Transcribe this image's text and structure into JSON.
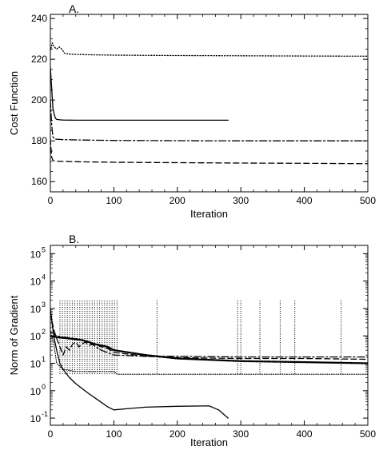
{
  "chart_data": [
    {
      "type": "line",
      "title": "A.",
      "xlabel": "Iteration",
      "ylabel": "Cost Function",
      "xlim": [
        0,
        500
      ],
      "ylim": [
        155,
        242
      ],
      "xticks": [
        0,
        100,
        200,
        300,
        400,
        500
      ],
      "yticks": [
        160,
        180,
        200,
        220,
        240
      ],
      "grid": false,
      "series": [
        {
          "style": "dotted",
          "x": [
            0,
            3,
            6,
            10,
            14,
            18,
            22,
            30,
            60,
            100,
            200,
            300,
            400,
            500
          ],
          "y": [
            224,
            228,
            226,
            225,
            226,
            225,
            223,
            222.5,
            222.2,
            222,
            221.8,
            221.7,
            221.6,
            221.5
          ]
        },
        {
          "style": "solid",
          "x": [
            0,
            2,
            4,
            6,
            8,
            10,
            15,
            20,
            40,
            100,
            200,
            280
          ],
          "y": [
            216,
            206,
            196,
            193,
            191,
            190.5,
            190.3,
            190.2,
            190.1,
            190.1,
            190.1,
            190.1
          ]
        },
        {
          "style": "dashdot",
          "x": [
            0,
            2,
            4,
            6,
            10,
            20,
            50,
            100,
            200,
            300,
            400,
            500
          ],
          "y": [
            200,
            188,
            182,
            181,
            180.8,
            180.6,
            180.4,
            180.2,
            180.1,
            180,
            180,
            180
          ]
        },
        {
          "style": "dashed",
          "x": [
            0,
            2,
            4,
            6,
            10,
            20,
            50,
            100,
            200,
            300,
            400,
            500
          ],
          "y": [
            181,
            172,
            170.5,
            170.2,
            170,
            169.9,
            169.7,
            169.5,
            169.3,
            169.1,
            169,
            168.8
          ]
        }
      ]
    },
    {
      "type": "line",
      "title": "B.",
      "xlabel": "Iteration",
      "ylabel": "Norm of Gradient",
      "yscale": "log",
      "xlim": [
        0,
        500
      ],
      "ylim": [
        0.055,
        200000
      ],
      "xticks": [
        0,
        100,
        200,
        300,
        400,
        500
      ],
      "yticks": [
        {
          "base": "10",
          "exp": "-1",
          "value": 0.1
        },
        {
          "base": "10",
          "exp": "0",
          "value": 1
        },
        {
          "base": "10",
          "exp": "1",
          "value": 10
        },
        {
          "base": "10",
          "exp": "2",
          "value": 100
        },
        {
          "base": "10",
          "exp": "3",
          "value": 1000
        },
        {
          "base": "10",
          "exp": "4",
          "value": 10000
        },
        {
          "base": "10",
          "exp": "5",
          "value": 100000
        }
      ],
      "grid": false,
      "series": [
        {
          "style": "solid",
          "x": [
            0,
            3,
            6,
            10,
            15,
            20,
            30,
            40,
            50,
            60,
            70,
            80,
            90,
            100,
            120,
            150,
            200,
            250,
            265,
            280
          ],
          "y": [
            1000,
            250,
            80,
            30,
            10,
            6,
            3,
            1.8,
            1.2,
            0.8,
            0.55,
            0.38,
            0.26,
            0.2,
            0.22,
            0.25,
            0.27,
            0.28,
            0.2,
            0.1
          ]
        },
        {
          "style": "dashed",
          "x": [
            0,
            3,
            6,
            10,
            15,
            20,
            25,
            30,
            35,
            40,
            45,
            50,
            55,
            60,
            70,
            80,
            90,
            100,
            150,
            200,
            300,
            400,
            500
          ],
          "y": [
            700,
            300,
            150,
            80,
            40,
            20,
            40,
            30,
            50,
            60,
            40,
            50,
            60,
            45,
            50,
            40,
            35,
            25,
            18,
            16,
            15,
            15,
            14
          ]
        },
        {
          "style": "dashdot",
          "x": [
            0,
            5,
            10,
            20,
            40,
            60,
            80,
            100,
            150,
            200,
            300,
            400,
            500
          ],
          "y": [
            150,
            120,
            100,
            90,
            80,
            60,
            30,
            20,
            18,
            18,
            17,
            17,
            17
          ]
        },
        {
          "style": "bold-dotted",
          "x": [
            0,
            10,
            20,
            30,
            40,
            50,
            60,
            70,
            80,
            90,
            100,
            150,
            200,
            300,
            400,
            500
          ],
          "y": [
            100,
            90,
            85,
            80,
            75,
            70,
            60,
            50,
            45,
            40,
            30,
            20,
            15,
            12,
            11,
            10
          ]
        },
        {
          "style": "dotted-spiky",
          "low": 4,
          "high": 2000,
          "x": [
            0,
            5,
            10,
            20,
            40,
            60,
            80,
            100,
            105,
            200,
            300,
            400,
            500
          ],
          "y": [
            150,
            60,
            10,
            6,
            5,
            5,
            5,
            5,
            4,
            4,
            4,
            4,
            4
          ],
          "spikes_dense_range": [
            15,
            105
          ],
          "spikes_dense_count": 24,
          "spikes": [
            168,
            295,
            300,
            330,
            362,
            385,
            458
          ]
        }
      ]
    }
  ]
}
